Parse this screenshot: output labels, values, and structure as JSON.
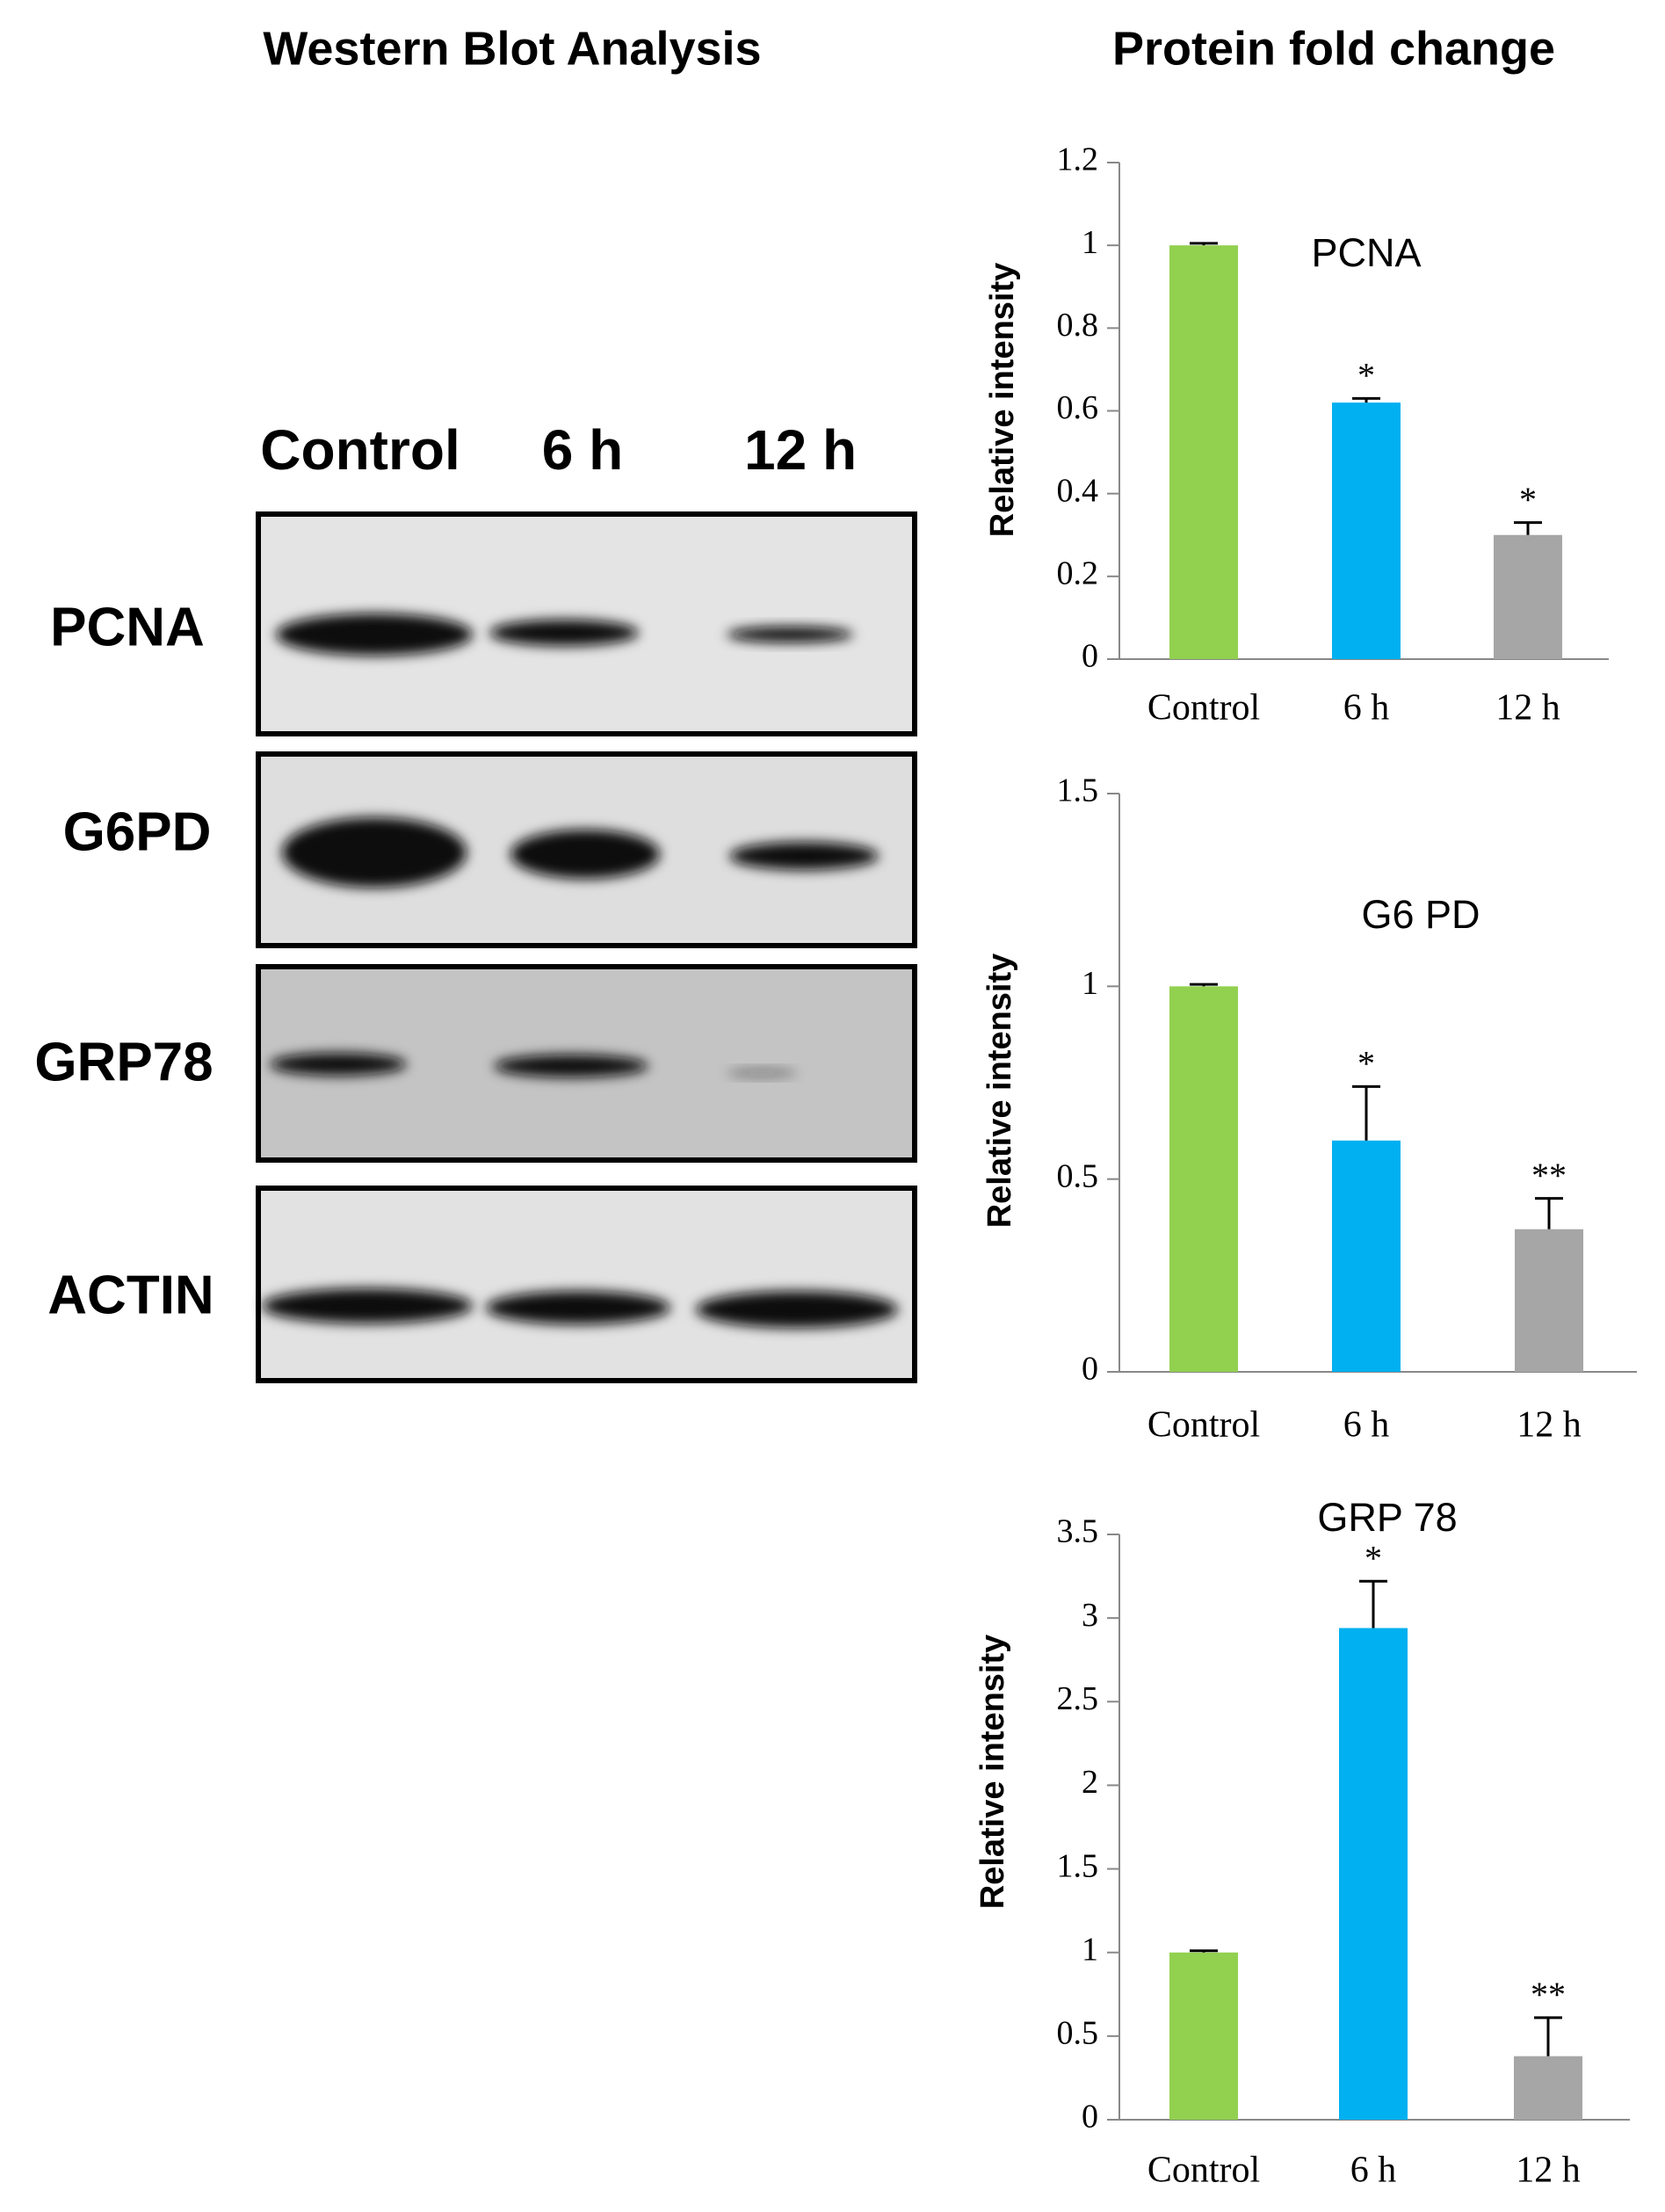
{
  "figure": {
    "blot_title": "Western Blot Analysis",
    "charts_title": "Protein fold change",
    "lanes": [
      "Control",
      "6 h",
      "12 h"
    ],
    "proteins": [
      "PCNA",
      "G6PD",
      "GRP78",
      "ACTIN"
    ]
  },
  "chart_data": [
    {
      "type": "bar",
      "title": "PCNA",
      "y_label": "Relative intensity",
      "categories": [
        "Control",
        "6 h",
        "12 h"
      ],
      "values": [
        1.0,
        0.62,
        0.3
      ],
      "errors": [
        0.005,
        0.01,
        0.03
      ],
      "significance": [
        null,
        "*",
        "*"
      ],
      "colors": [
        "#92d050",
        "#00b0f0",
        "#a6a6a6"
      ],
      "ylim": [
        0,
        1.2
      ],
      "yticks": [
        0,
        0.2,
        0.4,
        0.6,
        0.8,
        1,
        1.2
      ],
      "grid": false
    },
    {
      "type": "bar",
      "title": "G6 PD",
      "y_label": "Relative intensity",
      "categories": [
        "Control",
        "6 h",
        "12 h"
      ],
      "values": [
        1.0,
        0.6,
        0.37
      ],
      "errors": [
        0.005,
        0.14,
        0.08
      ],
      "significance": [
        null,
        "*",
        "**"
      ],
      "colors": [
        "#92d050",
        "#00b0f0",
        "#a6a6a6"
      ],
      "ylim": [
        0,
        1.5
      ],
      "yticks": [
        0,
        0.5,
        1,
        1.5
      ],
      "grid": false
    },
    {
      "type": "bar",
      "title": "GRP 78",
      "y_label": "Relative intensity",
      "categories": [
        "Control",
        "6 h",
        "12 h"
      ],
      "values": [
        1.0,
        2.94,
        0.38
      ],
      "errors": [
        0.01,
        0.28,
        0.23
      ],
      "significance": [
        null,
        "*",
        "**"
      ],
      "colors": [
        "#92d050",
        "#00b0f0",
        "#a6a6a6"
      ],
      "ylim": [
        0,
        3.5
      ],
      "yticks": [
        0,
        0.5,
        1,
        1.5,
        2,
        2.5,
        3,
        3.5
      ],
      "grid": false
    }
  ]
}
